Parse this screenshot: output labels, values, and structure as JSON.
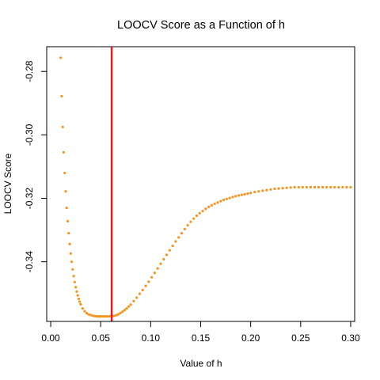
{
  "chart_data": {
    "type": "scatter",
    "title": "LOOCV Score as a Function of h",
    "xlabel": "Value of h",
    "ylabel": "LOOCV Score",
    "xlim": [
      -0.004,
      0.304
    ],
    "ylim": [
      -0.3588,
      -0.2722
    ],
    "x_ticks": [
      0.0,
      0.05,
      0.1,
      0.15,
      0.2,
      0.25,
      0.3
    ],
    "x_tick_labels": [
      "0.00",
      "0.05",
      "0.10",
      "0.15",
      "0.20",
      "0.25",
      "0.30"
    ],
    "y_ticks": [
      -0.34,
      -0.32,
      -0.3,
      -0.28
    ],
    "y_tick_labels": [
      "-0.34",
      "-0.32",
      "-0.30",
      "-0.28"
    ],
    "grid": false,
    "point_color": "#F7941E",
    "vline": {
      "x": 0.061,
      "color": "#E41A1C"
    },
    "series": [
      {
        "x": [
          0.01,
          0.011,
          0.012,
          0.013,
          0.014,
          0.015,
          0.016,
          0.017,
          0.018,
          0.019,
          0.02,
          0.021,
          0.022,
          0.023,
          0.024,
          0.025,
          0.026,
          0.027,
          0.028,
          0.029,
          0.03,
          0.032,
          0.034,
          0.036,
          0.038,
          0.04,
          0.042,
          0.044,
          0.046,
          0.048,
          0.05,
          0.052,
          0.054,
          0.056,
          0.058,
          0.06,
          0.062,
          0.064,
          0.066,
          0.068,
          0.07,
          0.072,
          0.074,
          0.076,
          0.078,
          0.08,
          0.083,
          0.086,
          0.089,
          0.092,
          0.095,
          0.098,
          0.101,
          0.104,
          0.107,
          0.11,
          0.113,
          0.116,
          0.119,
          0.122,
          0.125,
          0.128,
          0.131,
          0.134,
          0.137,
          0.14,
          0.143,
          0.146,
          0.149,
          0.152,
          0.155,
          0.158,
          0.161,
          0.164,
          0.167,
          0.17,
          0.173,
          0.176,
          0.179,
          0.182,
          0.185,
          0.188,
          0.191,
          0.194,
          0.197,
          0.2,
          0.204,
          0.208,
          0.212,
          0.216,
          0.22,
          0.224,
          0.228,
          0.232,
          0.236,
          0.24,
          0.244,
          0.248,
          0.252,
          0.256,
          0.26,
          0.264,
          0.268,
          0.272,
          0.276,
          0.28,
          0.284,
          0.288,
          0.292,
          0.296,
          0.3
        ],
        "y": [
          -0.2757,
          -0.2878,
          -0.2975,
          -0.3055,
          -0.312,
          -0.3178,
          -0.323,
          -0.3272,
          -0.331,
          -0.3344,
          -0.3374,
          -0.34,
          -0.3424,
          -0.3445,
          -0.3464,
          -0.348,
          -0.3494,
          -0.3506,
          -0.3517,
          -0.3526,
          -0.3534,
          -0.3547,
          -0.3556,
          -0.3562,
          -0.3566,
          -0.3568,
          -0.357,
          -0.3571,
          -0.3572,
          -0.3572,
          -0.3572,
          -0.3572,
          -0.3572,
          -0.3572,
          -0.3572,
          -0.3571,
          -0.3571,
          -0.357,
          -0.3568,
          -0.3565,
          -0.3561,
          -0.3557,
          -0.3552,
          -0.3547,
          -0.3541,
          -0.3535,
          -0.3524,
          -0.3513,
          -0.3501,
          -0.3489,
          -0.3476,
          -0.3463,
          -0.3449,
          -0.3435,
          -0.3421,
          -0.3406,
          -0.3392,
          -0.3378,
          -0.3364,
          -0.335,
          -0.3336,
          -0.3323,
          -0.331,
          -0.3297,
          -0.3285,
          -0.3274,
          -0.3264,
          -0.3255,
          -0.3247,
          -0.324,
          -0.3233,
          -0.3227,
          -0.3222,
          -0.3217,
          -0.3213,
          -0.3209,
          -0.3205,
          -0.3202,
          -0.3199,
          -0.3196,
          -0.3193,
          -0.3191,
          -0.3189,
          -0.3187,
          -0.3185,
          -0.3183,
          -0.318,
          -0.3178,
          -0.3176,
          -0.3174,
          -0.3172,
          -0.317,
          -0.3169,
          -0.3168,
          -0.3167,
          -0.3166,
          -0.3165,
          -0.3165,
          -0.3165,
          -0.3165,
          -0.3165,
          -0.3165,
          -0.3165,
          -0.3165,
          -0.3165,
          -0.3165,
          -0.3165,
          -0.3165,
          -0.3165,
          -0.3165,
          -0.3165
        ]
      }
    ]
  }
}
